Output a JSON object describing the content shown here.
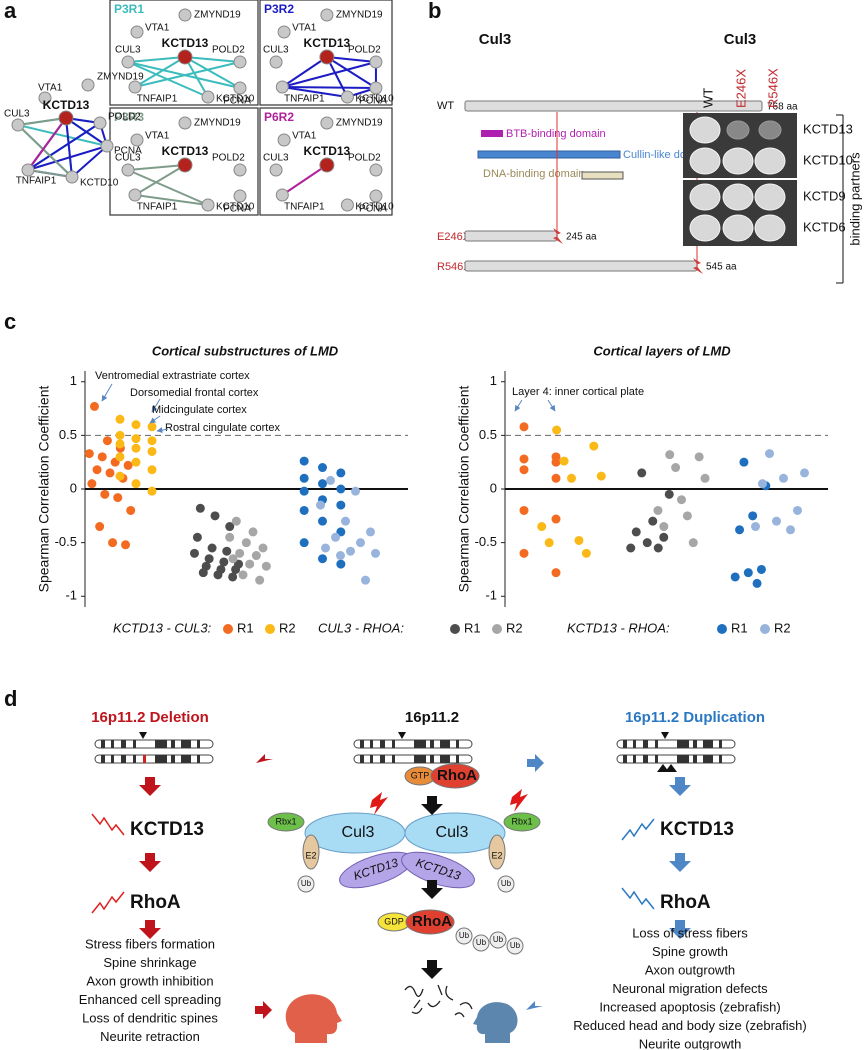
{
  "panel_a": {
    "label": "a",
    "nodes": [
      "VTA1",
      "ZMYND19",
      "CUL3",
      "KCTD13",
      "POLD2",
      "PCNA",
      "TNFAIP1",
      "KCTD10"
    ],
    "subnetworks": [
      {
        "title": "P3R1",
        "color": "#3cbcbc"
      },
      {
        "title": "P3R2",
        "color": "#1c1cc4"
      },
      {
        "title": "P3R3",
        "color": "#7f9c8a"
      },
      {
        "title": "P6R2",
        "color": "#b0229c"
      }
    ]
  },
  "panel_b": {
    "label": "b",
    "title": "Cul3",
    "wt": "WT",
    "wt_length": "768 aa",
    "domains": [
      "BTB-binding domain",
      "Cullin-like domain",
      "DNA-binding domain"
    ],
    "mutants": [
      {
        "name": "E246X",
        "length": "245 aa"
      },
      {
        "name": "R546X",
        "length": "545 aa"
      }
    ],
    "blot": {
      "title": "Cul3",
      "columns": [
        "WT",
        "E246X",
        "R546X"
      ],
      "rows": [
        "KCTD13",
        "KCTD10",
        "KCTD9",
        "KCTD6"
      ],
      "side_label": "binding partners"
    }
  },
  "panel_c": {
    "label": "c"
  },
  "chart_data": [
    {
      "type": "strip",
      "title": "Cortical substructures of LMD",
      "y_label": "Spearman Correlation Coefficient",
      "ylim": [
        -1.1,
        1.1
      ],
      "yticks": [
        1,
        0.5,
        0,
        -0.5,
        -1
      ],
      "threshold": 0.5,
      "annotations": [
        "Ventromedial extrastriate cortex",
        "Dorsomedial frontal cortex",
        "Midcingulate cortex",
        "Rostral cingulate cortex"
      ],
      "legend_groups": [
        "KCTD13 - CUL3:",
        "CUL3 - RHOA:",
        "KCTD13 - RHOA:"
      ],
      "series": [
        {
          "name": "R1",
          "color": "#f26b21",
          "values": [
            0.77,
            0.45,
            0.38,
            0.33,
            0.3,
            0.25,
            0.22,
            0.18,
            0.15,
            0.1,
            0.05,
            -0.05,
            -0.08,
            -0.2,
            -0.35,
            -0.5,
            -0.52
          ]
        },
        {
          "name": "R2",
          "color": "#fbb917",
          "values": [
            0.65,
            0.6,
            0.58,
            0.5,
            0.47,
            0.45,
            0.42,
            0.38,
            0.35,
            0.3,
            0.25,
            0.18,
            0.12,
            0.05,
            -0.02
          ]
        },
        {
          "name": "R1",
          "color": "#4d4d4d",
          "values": [
            -0.18,
            -0.25,
            -0.35,
            -0.45,
            -0.55,
            -0.58,
            -0.6,
            -0.65,
            -0.68,
            -0.7,
            -0.72,
            -0.75,
            -0.75,
            -0.78,
            -0.8,
            -0.82
          ]
        },
        {
          "name": "R2",
          "color": "#a6a6a6",
          "values": [
            -0.3,
            -0.4,
            -0.45,
            -0.5,
            -0.55,
            -0.6,
            -0.62,
            -0.65,
            -0.7,
            -0.72,
            -0.8,
            -0.85
          ]
        },
        {
          "name": "R1",
          "color": "#1f6fbf",
          "values": [
            0.26,
            0.2,
            0.15,
            0.1,
            0.05,
            0,
            -0.02,
            -0.1,
            -0.15,
            -0.2,
            -0.3,
            -0.4,
            -0.5,
            -0.65,
            -0.7
          ]
        },
        {
          "name": "R2",
          "color": "#98b4dc",
          "values": [
            0.08,
            -0.02,
            -0.15,
            -0.3,
            -0.4,
            -0.45,
            -0.5,
            -0.55,
            -0.58,
            -0.6,
            -0.62,
            -0.85
          ]
        }
      ]
    },
    {
      "type": "strip",
      "title": "Cortical layers of LMD",
      "y_label": "Spearman Correlation Coefficient",
      "ylim": [
        -1.1,
        1.1
      ],
      "yticks": [
        1,
        0.5,
        0,
        -0.5,
        -1
      ],
      "threshold": 0.5,
      "annotations": [
        "Layer 4: inner cortical plate"
      ],
      "series": [
        {
          "color": "#f26b21",
          "values": [
            0.58,
            0.3,
            0.28,
            0.25,
            0.18,
            0.1,
            -0.2,
            -0.28,
            -0.6,
            -0.78
          ]
        },
        {
          "color": "#fbb917",
          "values": [
            0.55,
            0.4,
            0.26,
            0.12,
            0.1,
            -0.35,
            -0.48,
            -0.5,
            -0.6
          ]
        },
        {
          "color": "#4d4d4d",
          "values": [
            0.15,
            -0.05,
            -0.3,
            -0.4,
            -0.45,
            -0.5,
            -0.55,
            -0.55
          ]
        },
        {
          "color": "#a6a6a6",
          "values": [
            0.32,
            0.3,
            0.2,
            0.1,
            -0.1,
            -0.2,
            -0.25,
            -0.35,
            -0.5
          ]
        },
        {
          "color": "#1f6fbf",
          "values": [
            0.25,
            0.03,
            -0.25,
            -0.38,
            -0.75,
            -0.78,
            -0.82,
            -0.88
          ]
        },
        {
          "color": "#98b4dc",
          "values": [
            0.33,
            0.15,
            0.1,
            0.05,
            -0.2,
            -0.3,
            -0.35,
            -0.38
          ]
        }
      ]
    }
  ],
  "panel_d": {
    "label": "d",
    "deletion": {
      "title": "16p11.2 Deletion",
      "gene": "KCTD13",
      "protein": "RhoA",
      "effects": [
        "Stress fibers formation",
        "Spine shrinkage",
        "Axon growth inhibition",
        "Enhanced cell spreading",
        "Loss of dendritic spines",
        "Neurite retraction"
      ]
    },
    "center": {
      "title": "16p11.2",
      "gtp": "GTP",
      "gdp": "GDP",
      "rhoa": "RhoA",
      "cul3": "Cul3",
      "rbx1": "Rbx1",
      "e2": "E2",
      "ub": "Ub",
      "kctd13": "KCTD13"
    },
    "duplication": {
      "title": "16p11.2 Duplication",
      "gene": "KCTD13",
      "protein": "RhoA",
      "effects": [
        "Loss of stress fibers",
        "Spine growth",
        "Axon outgrowth",
        "Neuronal migration defects",
        "Increased apoptosis (zebrafish)",
        "Reduced head and body size (zebrafish)",
        "Neurite outgrowth"
      ]
    }
  }
}
